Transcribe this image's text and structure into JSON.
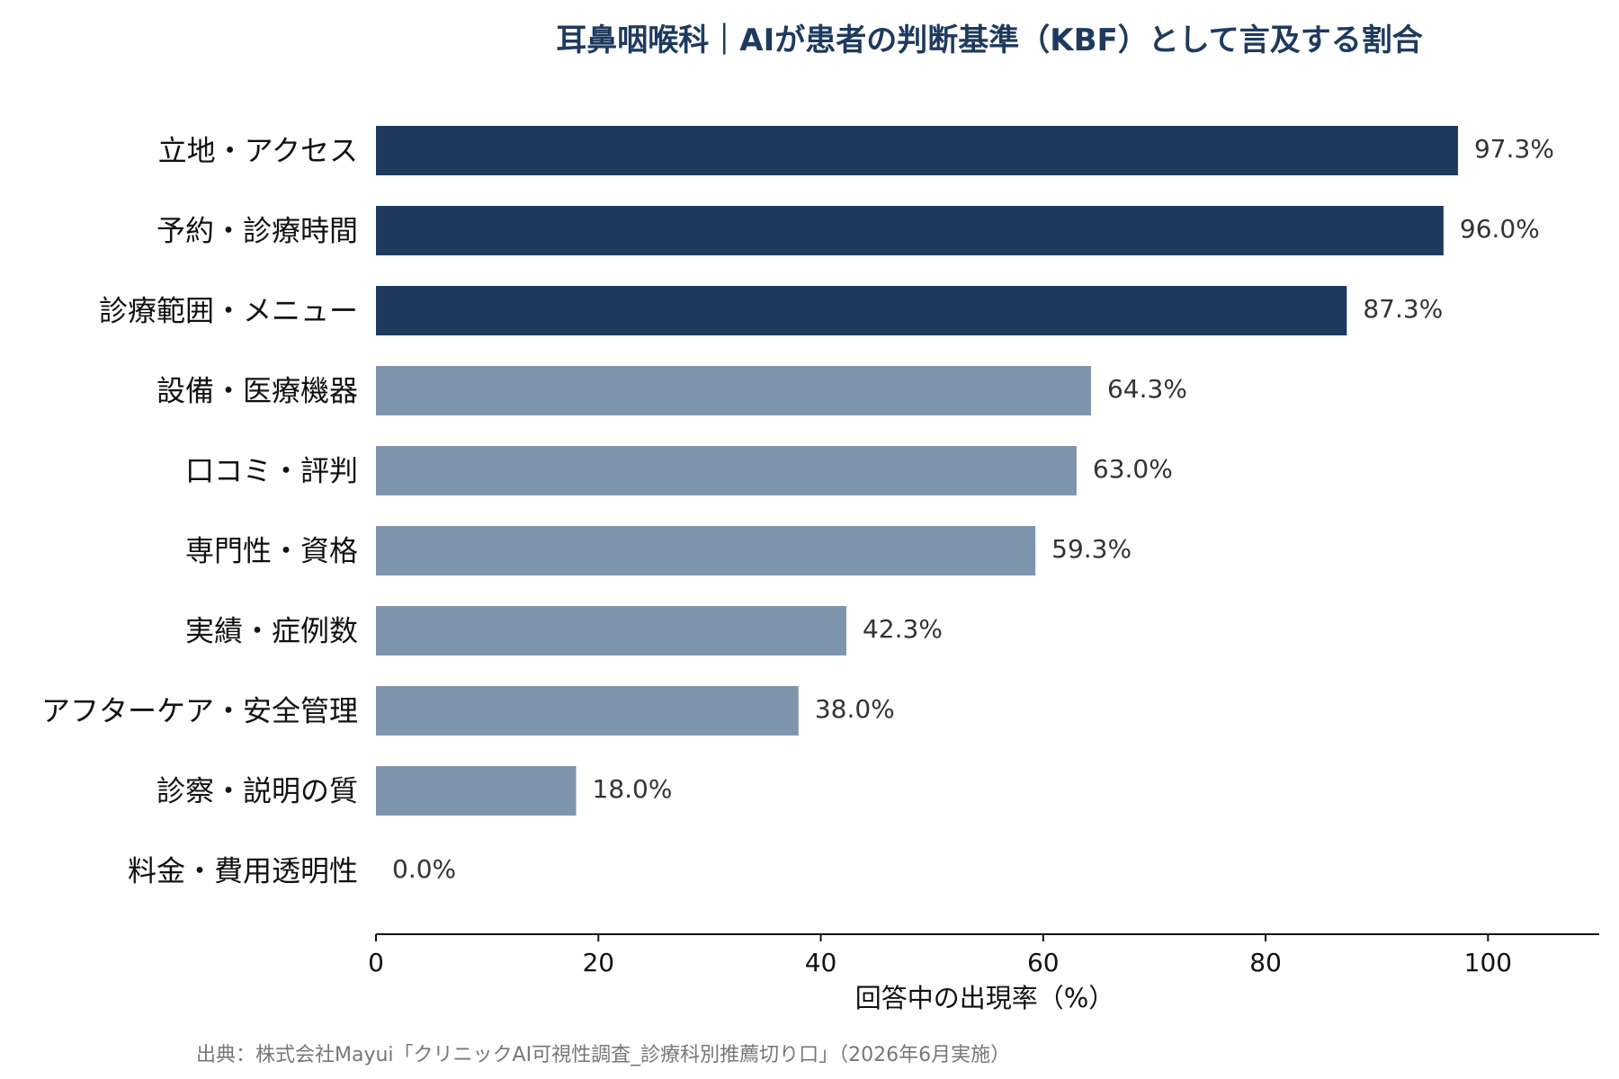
{
  "chart_data": {
    "type": "bar",
    "orientation": "horizontal",
    "title": "耳鼻咽喉科｜AIが患者の判断基準（KBF）として言及する割合",
    "categories": [
      "立地・アクセス",
      "予約・診療時間",
      "診療範囲・メニュー",
      "設備・医療機器",
      "口コミ・評判",
      "専門性・資格",
      "実績・症例数",
      "アフターケア・安全管理",
      "診察・説明の質",
      "料金・費用透明性"
    ],
    "values": [
      97.3,
      96.0,
      87.3,
      64.3,
      63.0,
      59.3,
      42.3,
      38.0,
      18.0,
      0.0
    ],
    "value_labels": [
      "97.3%",
      "96.0%",
      "87.3%",
      "64.3%",
      "63.0%",
      "59.3%",
      "42.3%",
      "38.0%",
      "18.0%",
      "0.0%"
    ],
    "highlighted_count": 3,
    "xlabel": "回答中の出現率（%）",
    "ylabel": "",
    "xlim": [
      0,
      110
    ],
    "xticks": [
      0,
      20,
      40,
      60,
      80,
      100
    ],
    "xtick_labels": [
      "0",
      "20",
      "40",
      "60",
      "80",
      "100"
    ],
    "grid": false,
    "colors": {
      "highlight": "#1f3a5f",
      "normal": "#7f95ad",
      "title": "#1f3a5f",
      "axis": "#111111",
      "source": "#777777"
    }
  },
  "source": "出典：株式会社Mayui「クリニックAI可視性調査_診療科別推薦切り口」（2026年6月実施）"
}
